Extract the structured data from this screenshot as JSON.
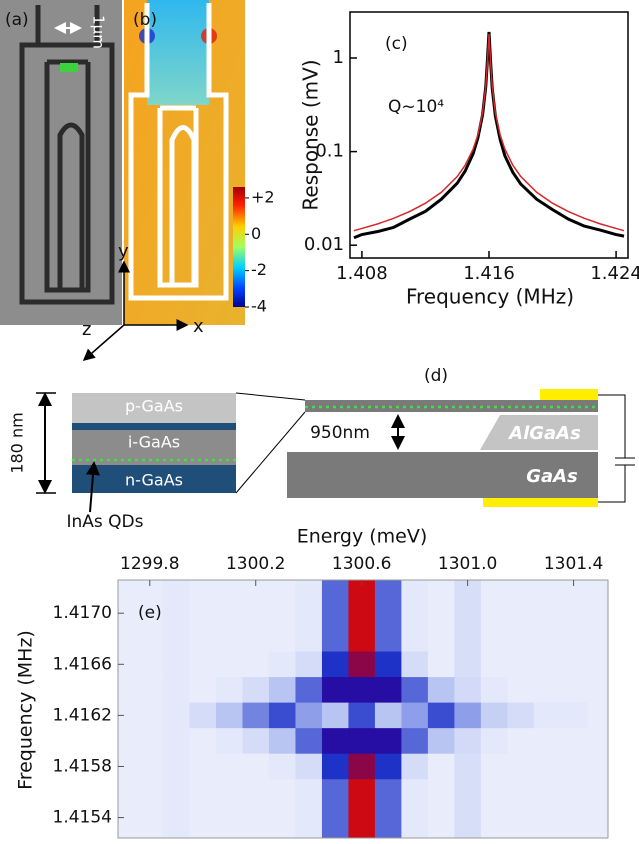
{
  "figure": {
    "panel_a": {
      "label": "(a)",
      "scale_bar": "1μm"
    },
    "panel_b": {
      "label": "(b)",
      "colorbar_lim": [
        -4,
        2.6
      ],
      "colorbar_ticks": [
        {
          "value": 2,
          "label": "+2"
        },
        0,
        -2,
        -4
      ]
    },
    "axes_labels": {
      "x": "x",
      "y": "y",
      "z": "z"
    },
    "panel_d": {
      "label": "(d)",
      "thickness": "180 nm",
      "layers": [
        "p-GaAs",
        "i-GaAs",
        "n-GaAs"
      ],
      "qd_label": "InAs QDs",
      "gap": "950nm",
      "substrate_layers": [
        "AlGaAs",
        "GaAs"
      ]
    }
  },
  "chart_data": [
    {
      "type": "line",
      "label": "(c)",
      "xlabel": "Frequency (MHz)",
      "ylabel": "Response (mV)",
      "annotation": "Q~10⁴",
      "x": [
        1.4075,
        1.408,
        1.409,
        1.41,
        1.411,
        1.412,
        1.413,
        1.414,
        1.4145,
        1.415,
        1.4153,
        1.4156,
        1.4158,
        1.4159,
        1.416,
        1.4161,
        1.4162,
        1.4164,
        1.4167,
        1.417,
        1.4175,
        1.418,
        1.419,
        1.42,
        1.421,
        1.422,
        1.423,
        1.424,
        1.4245
      ],
      "series": [
        {
          "color": "#000000",
          "values": [
            0.012,
            0.013,
            0.014,
            0.0155,
            0.019,
            0.023,
            0.031,
            0.046,
            0.062,
            0.095,
            0.14,
            0.25,
            0.5,
            0.95,
            1.9,
            0.92,
            0.48,
            0.24,
            0.135,
            0.09,
            0.06,
            0.045,
            0.031,
            0.024,
            0.019,
            0.016,
            0.0145,
            0.013,
            0.0125
          ]
        },
        {
          "color": "#d62728",
          "values": [
            0.0143,
            0.0151,
            0.0169,
            0.0194,
            0.0229,
            0.0281,
            0.0368,
            0.0542,
            0.0716,
            0.106,
            0.151,
            0.26,
            0.503,
            0.905,
            1.8,
            0.905,
            0.503,
            0.26,
            0.151,
            0.106,
            0.0716,
            0.0542,
            0.0368,
            0.0281,
            0.0229,
            0.0194,
            0.0169,
            0.0151,
            0.0143
          ]
        }
      ],
      "log_y": true,
      "xlim": [
        1.40725,
        1.42475
      ],
      "ylim": [
        0.0073,
        3.1
      ],
      "xticks": [
        1.408,
        1.416,
        1.424
      ],
      "yticks": [
        0.01,
        0.1,
        1
      ]
    },
    {
      "type": "heatmap",
      "label": "(e)",
      "xlabel": "Energy (meV)",
      "ylabel": "Frequency (MHz)",
      "x": [
        1299.7,
        1299.8,
        1299.9,
        1300.0,
        1300.1,
        1300.2,
        1300.3,
        1300.4,
        1300.5,
        1300.6,
        1300.7,
        1300.8,
        1300.9,
        1301.0,
        1301.1,
        1301.2,
        1301.3,
        1301.4,
        1301.5
      ],
      "y": [
        1.417,
        1.4168,
        1.4166,
        1.4164,
        1.4162,
        1.416,
        1.4158,
        1.4156,
        1.4154
      ],
      "z": [
        [
          0.08,
          0.08,
          0.1,
          0.08,
          0.08,
          0.08,
          0.08,
          0.1,
          0.45,
          1,
          0.45,
          0.1,
          0.08,
          0.14,
          0.08,
          0.08,
          0.08,
          0.08,
          0.08
        ],
        [
          0.08,
          0.08,
          0.1,
          0.08,
          0.08,
          0.08,
          0.08,
          0.1,
          0.45,
          1,
          0.45,
          0.1,
          0.08,
          0.14,
          0.08,
          0.08,
          0.08,
          0.08,
          0.08
        ],
        [
          0.08,
          0.08,
          0.1,
          0.08,
          0.08,
          0.08,
          0.1,
          0.15,
          0.55,
          0.9,
          0.55,
          0.15,
          0.08,
          0.14,
          0.08,
          0.08,
          0.08,
          0.08,
          0.08
        ],
        [
          0.08,
          0.08,
          0.1,
          0.08,
          0.1,
          0.15,
          0.25,
          0.45,
          0.7,
          0.7,
          0.7,
          0.45,
          0.25,
          0.16,
          0.1,
          0.08,
          0.08,
          0.08,
          0.08
        ],
        [
          0.08,
          0.08,
          0.1,
          0.15,
          0.25,
          0.4,
          0.5,
          0.35,
          0.25,
          0.5,
          0.25,
          0.35,
          0.5,
          0.35,
          0.2,
          0.15,
          0.1,
          0.1,
          0.08
        ],
        [
          0.08,
          0.08,
          0.1,
          0.08,
          0.1,
          0.15,
          0.25,
          0.45,
          0.7,
          0.7,
          0.7,
          0.45,
          0.25,
          0.16,
          0.1,
          0.08,
          0.08,
          0.08,
          0.08
        ],
        [
          0.08,
          0.08,
          0.1,
          0.08,
          0.08,
          0.08,
          0.1,
          0.15,
          0.55,
          0.9,
          0.55,
          0.15,
          0.08,
          0.14,
          0.08,
          0.08,
          0.08,
          0.08,
          0.08
        ],
        [
          0.08,
          0.08,
          0.1,
          0.08,
          0.08,
          0.08,
          0.08,
          0.1,
          0.45,
          1,
          0.45,
          0.1,
          0.08,
          0.14,
          0.08,
          0.08,
          0.08,
          0.08,
          0.08
        ],
        [
          0.08,
          0.08,
          0.1,
          0.08,
          0.08,
          0.08,
          0.08,
          0.1,
          0.45,
          1,
          0.45,
          0.1,
          0.08,
          0.14,
          0.08,
          0.08,
          0.08,
          0.08,
          0.08
        ]
      ],
      "xlim": [
        1299.68,
        1301.53
      ],
      "ylim": [
        1.41524,
        1.41726
      ],
      "xticks": [
        1299.8,
        1300.2,
        1300.6,
        {
          "value": 1301,
          "label": "1301.0"
        },
        1301.4
      ],
      "yticks": [
        {
          "value": 1.417,
          "label": "1.4170"
        },
        1.4166,
        1.4162,
        1.4158,
        1.4154
      ]
    }
  ]
}
